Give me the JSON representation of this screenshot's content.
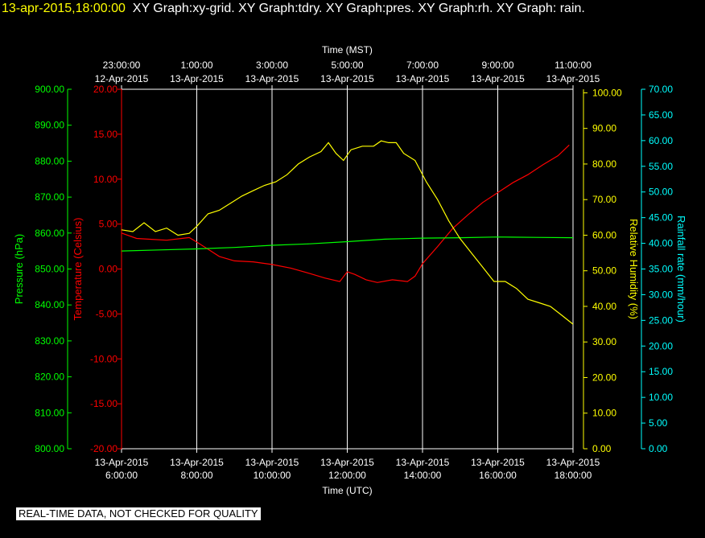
{
  "header": {
    "timestamp": "13-apr-2015,18:00:00",
    "graphs": "XY Graph:xy-grid.  XY Graph:tdry.  XY Graph:pres.  XY Graph:rh.  XY Graph: rain."
  },
  "footer": {
    "notice": "REAL-TIME DATA, NOT CHECKED FOR QUALITY"
  },
  "colors": {
    "pressure": "#00ff00",
    "temperature": "#ff0000",
    "humidity": "#ffff00",
    "rain": "#00ffff",
    "grid": "#ffffff"
  },
  "chart_data": {
    "type": "line",
    "x_top_label": "Time (MST)",
    "x_bottom_label": "Time (UTC)",
    "x_ticks_utc": [
      {
        "time": "6:00:00",
        "date": "13-Apr-2015"
      },
      {
        "time": "8:00:00",
        "date": "13-Apr-2015"
      },
      {
        "time": "10:00:00",
        "date": "13-Apr-2015"
      },
      {
        "time": "12:00:00",
        "date": "13-Apr-2015"
      },
      {
        "time": "14:00:00",
        "date": "13-Apr-2015"
      },
      {
        "time": "16:00:00",
        "date": "13-Apr-2015"
      },
      {
        "time": "18:00:00",
        "date": "13-Apr-2015"
      }
    ],
    "x_ticks_mst": [
      {
        "time": "23:00:00",
        "date": "12-Apr-2015"
      },
      {
        "time": "1:00:00",
        "date": "13-Apr-2015"
      },
      {
        "time": "3:00:00",
        "date": "13-Apr-2015"
      },
      {
        "time": "5:00:00",
        "date": "13-Apr-2015"
      },
      {
        "time": "7:00:00",
        "date": "13-Apr-2015"
      },
      {
        "time": "9:00:00",
        "date": "13-Apr-2015"
      },
      {
        "time": "11:00:00",
        "date": "13-Apr-2015"
      }
    ],
    "xlim_utc_hours": [
      6,
      18
    ],
    "grid": true,
    "axes": {
      "pressure": {
        "label": "Pressure (hPa)",
        "ylim": [
          800,
          900
        ],
        "ticks": [
          "900.00",
          "890.00",
          "880.00",
          "870.00",
          "860.00",
          "850.00",
          "840.00",
          "830.00",
          "820.00",
          "810.00",
          "800.00"
        ]
      },
      "temperature": {
        "label": "Temperature (Celsius)",
        "ylim": [
          -20,
          20
        ],
        "ticks": [
          "20.00",
          "15.00",
          "10.00",
          "5.00",
          "0.00",
          "-5.00",
          "-10.00",
          "-15.00",
          "-20.00"
        ]
      },
      "humidity": {
        "label": "Relative Humidity (%)",
        "ylim": [
          0,
          101
        ],
        "ticks": [
          "100.00",
          "90.00",
          "80.00",
          "70.00",
          "60.00",
          "50.00",
          "40.00",
          "30.00",
          "20.00",
          "10.00",
          "0.00"
        ]
      },
      "rain": {
        "label": "Rainfall rate (mm/hour)",
        "ylim": [
          0,
          70
        ],
        "ticks": [
          "70.00",
          "65.00",
          "60.00",
          "55.00",
          "50.00",
          "45.00",
          "40.00",
          "35.00",
          "30.00",
          "25.00",
          "20.00",
          "15.00",
          "10.00",
          "5.00",
          "0.00"
        ]
      }
    },
    "series": [
      {
        "key": "temperature",
        "name": "Temperature (Celsius)",
        "x": [
          6.0,
          6.4,
          6.8,
          7.2,
          7.6,
          7.8,
          8.0,
          8.3,
          8.6,
          9.0,
          9.5,
          10.0,
          10.5,
          11.0,
          11.4,
          11.8,
          12.0,
          12.2,
          12.5,
          12.8,
          13.2,
          13.6,
          13.8,
          14.0,
          14.4,
          14.8,
          15.2,
          15.6,
          16.0,
          16.4,
          16.8,
          17.2,
          17.6,
          17.9
        ],
        "y": [
          4.0,
          3.4,
          3.3,
          3.2,
          3.4,
          3.5,
          3.0,
          2.2,
          1.4,
          0.9,
          0.8,
          0.5,
          0.1,
          -0.5,
          -1.0,
          -1.4,
          -0.3,
          -0.6,
          -1.2,
          -1.5,
          -1.2,
          -1.4,
          -0.8,
          0.6,
          2.5,
          4.5,
          6.0,
          7.4,
          8.5,
          9.6,
          10.5,
          11.6,
          12.6,
          13.8
        ]
      },
      {
        "key": "pressure",
        "name": "Pressure (hPa)",
        "x": [
          6.0,
          7.0,
          8.0,
          9.0,
          10.0,
          11.0,
          12.0,
          13.0,
          14.0,
          15.0,
          16.0,
          17.0,
          18.0
        ],
        "y": [
          855.0,
          855.3,
          855.6,
          856.0,
          856.6,
          857.0,
          857.6,
          858.3,
          858.6,
          858.7,
          858.9,
          858.8,
          858.7
        ]
      },
      {
        "key": "humidity",
        "name": "Relative Humidity (%)",
        "x": [
          6.0,
          6.3,
          6.6,
          6.9,
          7.2,
          7.5,
          7.8,
          8.0,
          8.3,
          8.6,
          8.9,
          9.2,
          9.5,
          9.8,
          10.1,
          10.4,
          10.7,
          11.0,
          11.3,
          11.5,
          11.7,
          11.9,
          12.1,
          12.4,
          12.7,
          12.9,
          13.1,
          13.3,
          13.5,
          13.8,
          14.1,
          14.4,
          14.7,
          15.0,
          15.3,
          15.6,
          15.9,
          16.2,
          16.5,
          16.8,
          17.1,
          17.4,
          17.7,
          18.0
        ],
        "y": [
          61.5,
          61.0,
          63.5,
          61.0,
          62.0,
          60.0,
          60.5,
          62.5,
          66.0,
          67.0,
          69.0,
          71.0,
          72.5,
          74.0,
          75.0,
          77.0,
          80.0,
          82.0,
          83.5,
          86.0,
          83.0,
          81.0,
          84.0,
          85.0,
          85.0,
          86.5,
          86.0,
          86.0,
          83.0,
          81.0,
          75.0,
          70.0,
          64.0,
          59.0,
          55.0,
          51.0,
          47.0,
          47.0,
          45.0,
          42.0,
          41.0,
          40.0,
          37.5,
          35.0
        ]
      }
    ]
  }
}
